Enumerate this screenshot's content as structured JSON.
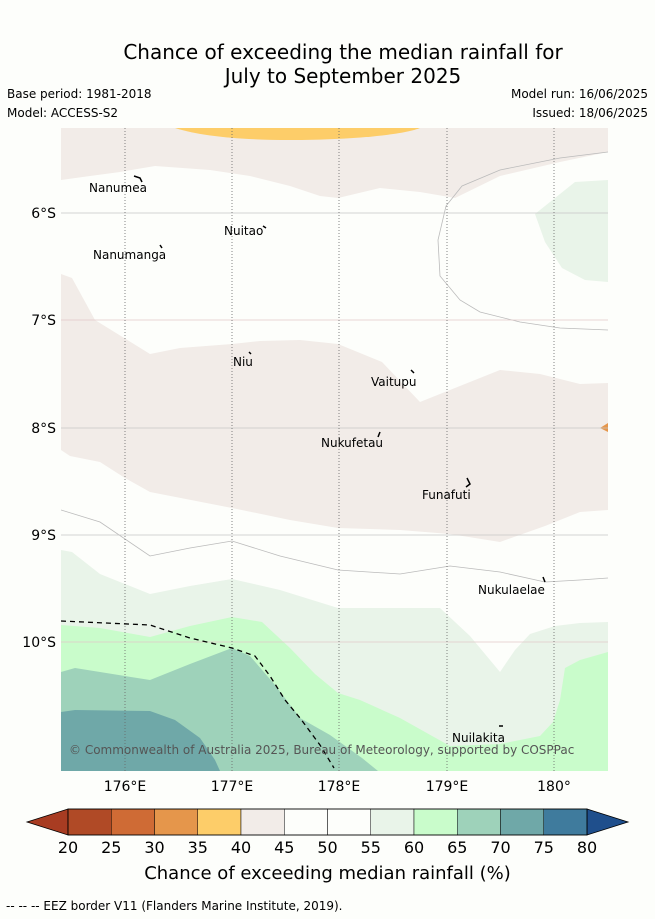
{
  "header": {
    "title_line1": "Chance of exceeding the median rainfall for",
    "title_line2": "July to September 2025",
    "base_period": "Base period: 1981-2018",
    "model": "Model: ACCESS-S2",
    "model_run": "Model run: 16/06/2025",
    "issued": "Issued: 18/06/2025"
  },
  "map": {
    "lat_labels": [
      "6°S",
      "7°S",
      "8°S",
      "9°S",
      "10°S"
    ],
    "lon_labels": [
      "176°E",
      "177°E",
      "178°E",
      "179°E",
      "180°"
    ],
    "islands": [
      "Nanumea",
      "Nuitao",
      "Nanumanga",
      "Niu",
      "Vaitupu",
      "Nukufetau",
      "Funafuti",
      "Nukulaelae",
      "Nuilakita"
    ],
    "copyright": "© Commonwealth of Australia 2025, Bureau of Meteorology, supported by COSPPac"
  },
  "colorbar": {
    "ticks": [
      "20",
      "25",
      "30",
      "35",
      "40",
      "45",
      "50",
      "55",
      "60",
      "65",
      "70",
      "75",
      "80"
    ],
    "colors": [
      "#b04a26",
      "#cf6b35",
      "#e5964b",
      "#fdcd69",
      "#f2ece8",
      "#fdfefb",
      "#fdfefb",
      "#e9f4e9",
      "#c9fccb",
      "#9ed2ba",
      "#6fa8a8",
      "#3f7b9d"
    ],
    "low_color": "#a83c22",
    "high_color": "#1f4f8c",
    "label": "Chance of exceeding median rainfall (%)"
  },
  "footer": {
    "eez_note": "-- -- -- EEZ border V11 (Flanders Marine Institute, 2019)."
  }
}
